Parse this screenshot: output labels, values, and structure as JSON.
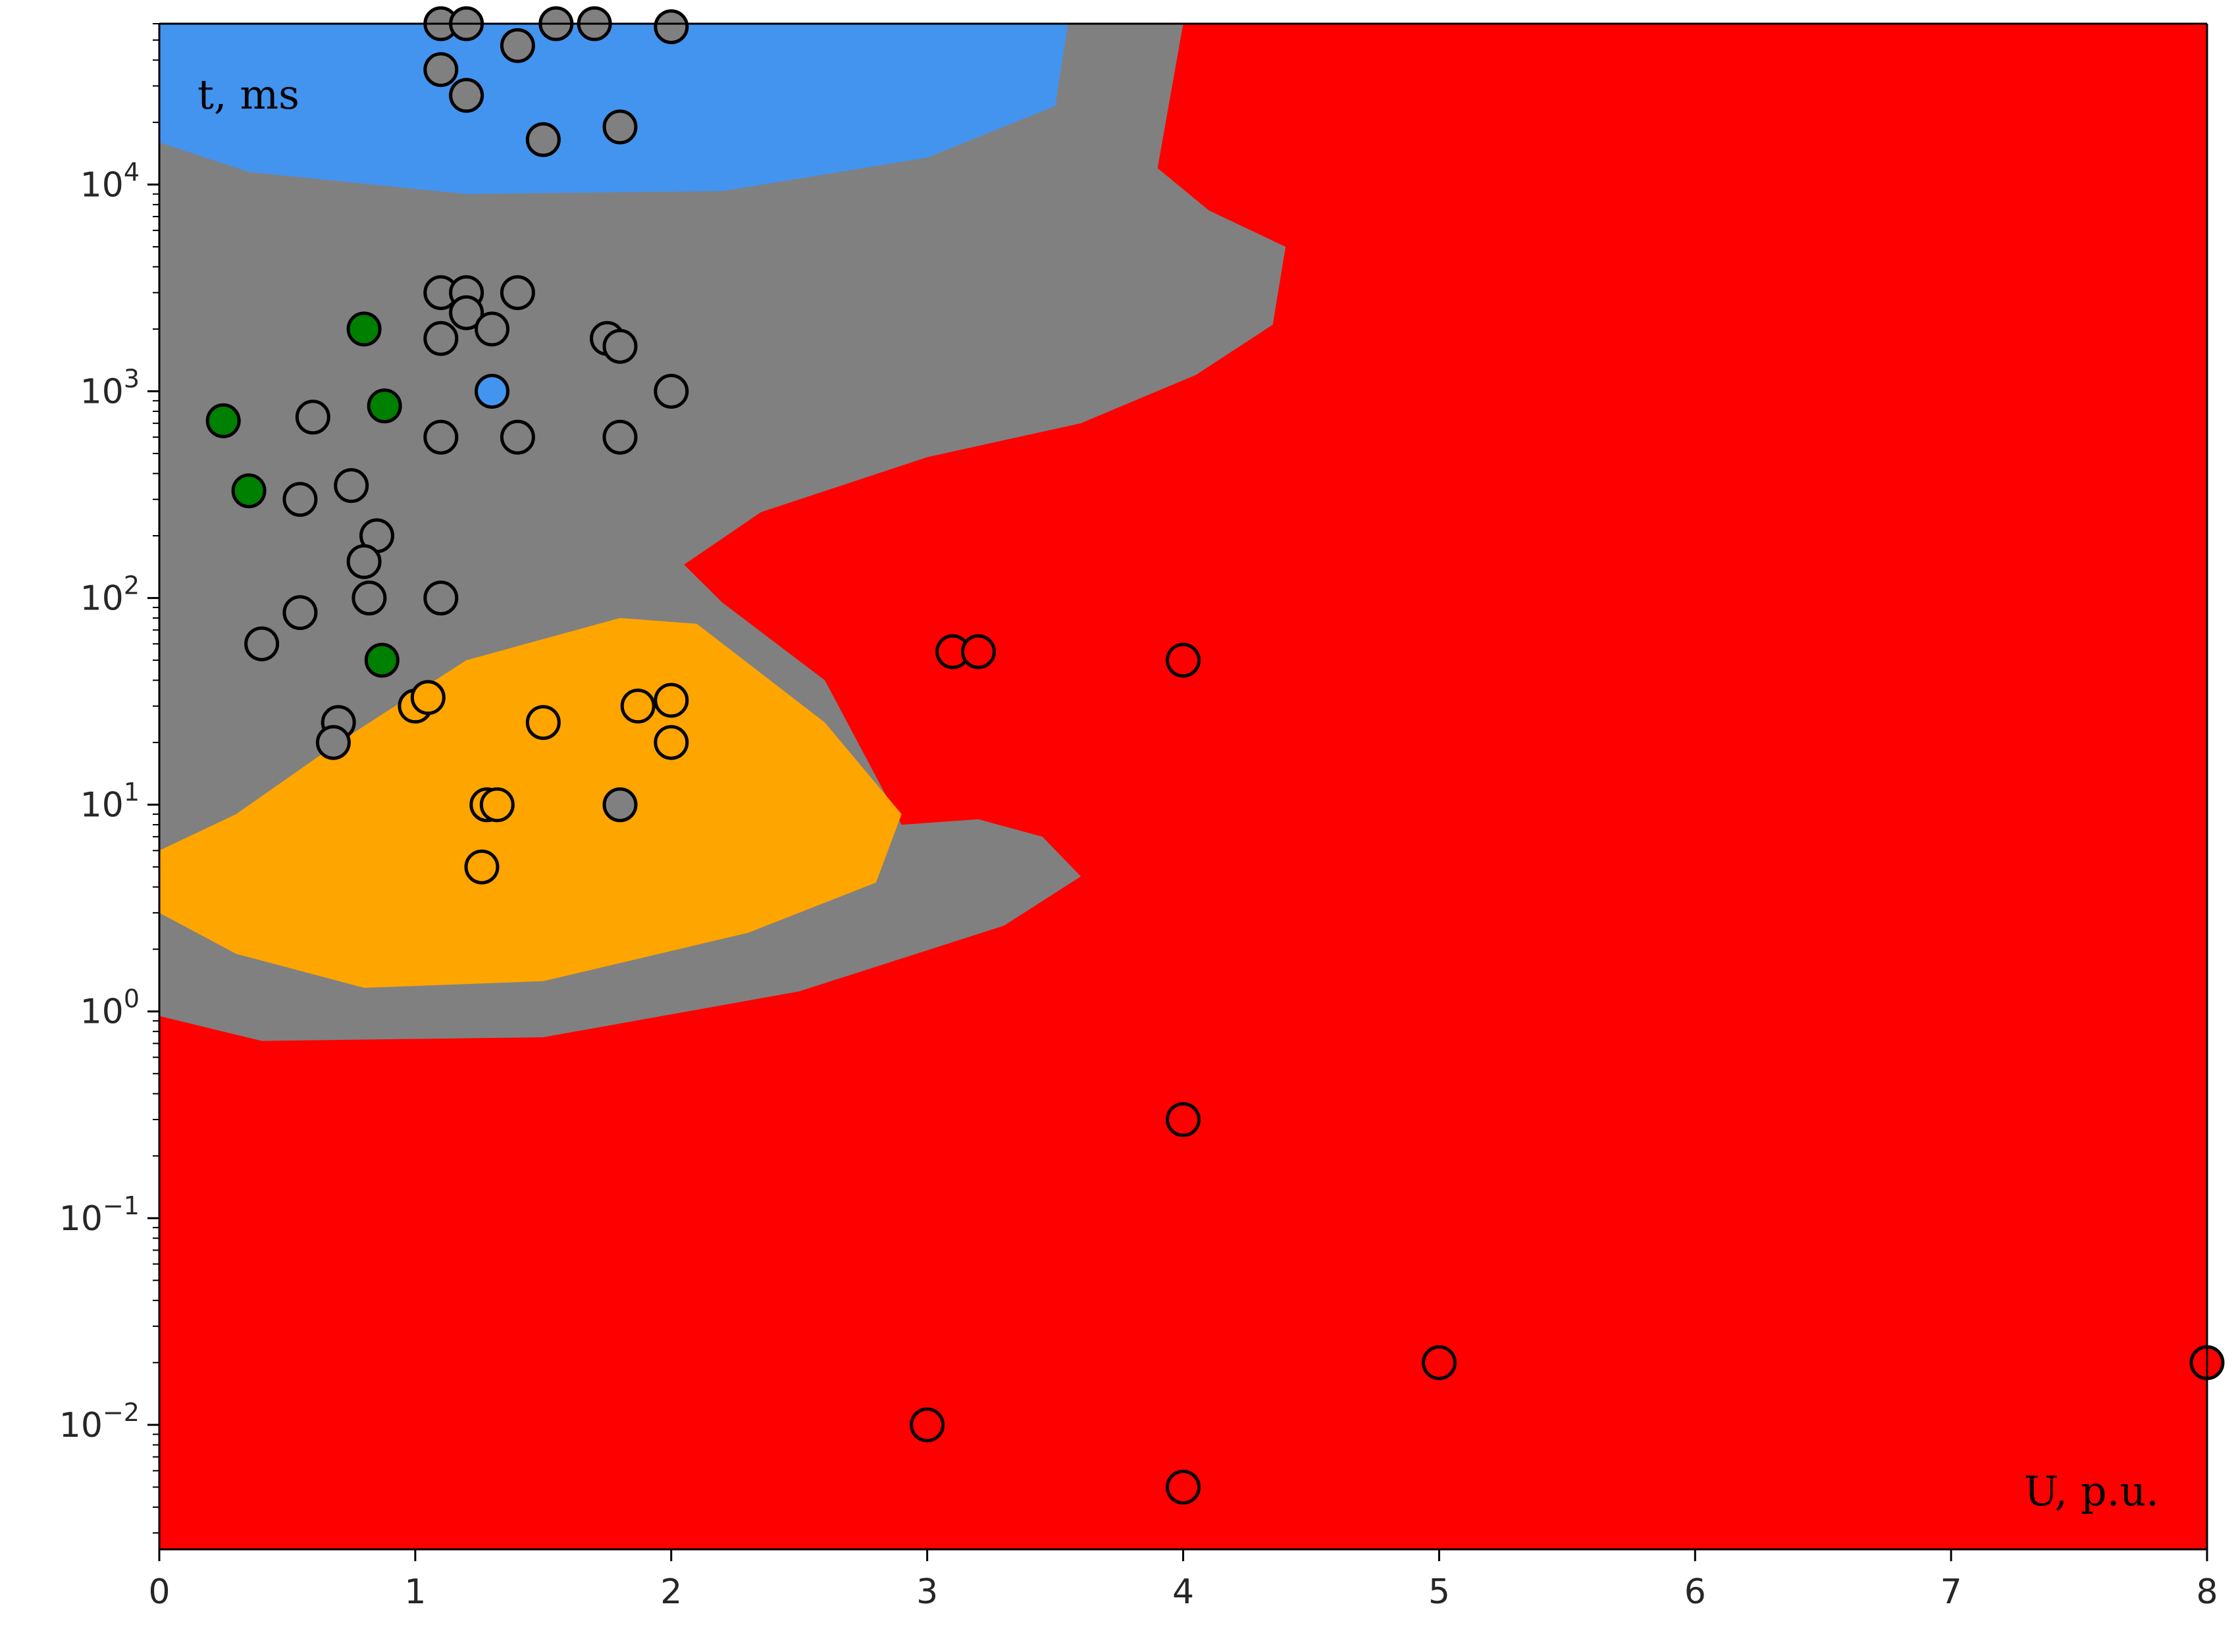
{
  "chart_data": {
    "type": "scatter",
    "xlabel": "U, p.u.",
    "ylabel": "t, ms",
    "x_scale": "linear",
    "y_scale": "log",
    "xlim": [
      0,
      8
    ],
    "ylim": [
      0.0025,
      60000
    ],
    "grid": false,
    "x_ticks": [
      {
        "value": 0,
        "label": "0"
      },
      {
        "value": 1,
        "label": "1"
      },
      {
        "value": 2,
        "label": "2"
      },
      {
        "value": 3,
        "label": "3"
      },
      {
        "value": 4,
        "label": "4"
      },
      {
        "value": 5,
        "label": "5"
      },
      {
        "value": 6,
        "label": "6"
      },
      {
        "value": 7,
        "label": "7"
      },
      {
        "value": 8,
        "label": "8"
      }
    ],
    "y_ticks": [
      {
        "value": 0.01,
        "base": "10",
        "exp": "−2"
      },
      {
        "value": 0.1,
        "base": "10",
        "exp": "−1"
      },
      {
        "value": 1,
        "base": "10",
        "exp": "0"
      },
      {
        "value": 10,
        "base": "10",
        "exp": "1"
      },
      {
        "value": 100,
        "base": "10",
        "exp": "2"
      },
      {
        "value": 1000,
        "base": "10",
        "exp": "3"
      },
      {
        "value": 10000,
        "base": "10",
        "exp": "4"
      }
    ],
    "colors": {
      "red": "#ff0000",
      "gray": "#808080",
      "blue": "#4394ef",
      "orange": "#ffa500",
      "green": "#008000",
      "marker_edge": "#000000"
    },
    "regions": [
      {
        "color": "red",
        "outline": [
          [
            0,
            0.0025
          ],
          [
            8,
            0.0025
          ],
          [
            8,
            60000
          ],
          [
            0,
            60000
          ]
        ]
      },
      {
        "color": "gray",
        "outline": [
          [
            0,
            0.95
          ],
          [
            0.4,
            0.72
          ],
          [
            1.5,
            0.75
          ],
          [
            2.5,
            1.25
          ],
          [
            3.3,
            2.6
          ],
          [
            3.6,
            4.5
          ],
          [
            3.45,
            7
          ],
          [
            3.2,
            8.5
          ],
          [
            2.9,
            8
          ],
          [
            2.6,
            40
          ],
          [
            2.2,
            95
          ],
          [
            2.05,
            145
          ],
          [
            2.35,
            260
          ],
          [
            3,
            480
          ],
          [
            3.6,
            700
          ],
          [
            4.05,
            1200
          ],
          [
            4.35,
            2100
          ],
          [
            4.4,
            5000
          ],
          [
            4.1,
            7500
          ],
          [
            3.9,
            12000
          ],
          [
            4,
            60000
          ],
          [
            0,
            60000
          ]
        ]
      },
      {
        "color": "blue",
        "outline": [
          [
            0,
            16000
          ],
          [
            0.35,
            11500
          ],
          [
            1.2,
            9000
          ],
          [
            2.2,
            9300
          ],
          [
            3,
            13500
          ],
          [
            3.5,
            24000
          ],
          [
            3.55,
            60000
          ],
          [
            0,
            60000
          ]
        ]
      },
      {
        "color": "orange",
        "outline": [
          [
            0,
            6
          ],
          [
            0.3,
            9
          ],
          [
            0.7,
            20
          ],
          [
            1.2,
            50
          ],
          [
            1.8,
            80
          ],
          [
            2.1,
            75
          ],
          [
            2.6,
            25
          ],
          [
            2.9,
            9
          ],
          [
            2.8,
            4.2
          ],
          [
            2.3,
            2.4
          ],
          [
            1.5,
            1.4
          ],
          [
            0.8,
            1.3
          ],
          [
            0.3,
            1.9
          ],
          [
            0,
            3
          ]
        ]
      }
    ],
    "series": [
      {
        "color": "gray",
        "points": [
          [
            1.1,
            60000
          ],
          [
            1.2,
            60000
          ],
          [
            1.55,
            60000
          ],
          [
            1.7,
            60000
          ],
          [
            2.0,
            58000
          ],
          [
            1.1,
            36000
          ],
          [
            1.4,
            47000
          ],
          [
            1.2,
            27000
          ],
          [
            1.5,
            16500
          ],
          [
            1.8,
            19000
          ],
          [
            1.1,
            3000
          ],
          [
            1.2,
            3000
          ],
          [
            1.4,
            3000
          ],
          [
            1.2,
            2400
          ],
          [
            1.1,
            1800
          ],
          [
            1.3,
            2000
          ],
          [
            1.75,
            1800
          ],
          [
            1.8,
            1650
          ],
          [
            2.0,
            1000
          ],
          [
            0.6,
            750
          ],
          [
            1.1,
            600
          ],
          [
            1.4,
            600
          ],
          [
            1.8,
            600
          ],
          [
            0.55,
            300
          ],
          [
            0.75,
            350
          ],
          [
            0.85,
            200
          ],
          [
            0.8,
            150
          ],
          [
            0.82,
            100
          ],
          [
            1.1,
            100
          ],
          [
            0.55,
            85
          ],
          [
            0.4,
            60
          ],
          [
            0.7,
            25
          ],
          [
            0.68,
            20
          ],
          [
            1.8,
            10
          ]
        ]
      },
      {
        "color": "green",
        "points": [
          [
            0.8,
            2000
          ],
          [
            0.88,
            850
          ],
          [
            0.25,
            720
          ],
          [
            0.35,
            330
          ],
          [
            0.87,
            50
          ]
        ]
      },
      {
        "color": "blue",
        "points": [
          [
            1.3,
            1000
          ]
        ]
      },
      {
        "color": "orange",
        "points": [
          [
            1.0,
            30
          ],
          [
            1.05,
            33
          ],
          [
            1.5,
            25
          ],
          [
            1.87,
            30
          ],
          [
            2.0,
            32
          ],
          [
            2.0,
            20
          ],
          [
            1.28,
            10
          ],
          [
            1.32,
            10
          ],
          [
            1.26,
            5
          ]
        ]
      },
      {
        "color": "red",
        "points": [
          [
            3.1,
            55
          ],
          [
            3.2,
            55
          ],
          [
            4,
            50
          ],
          [
            4,
            0.3
          ],
          [
            5,
            0.02
          ],
          [
            8,
            0.02
          ],
          [
            3,
            0.01
          ],
          [
            4,
            0.005
          ]
        ]
      }
    ]
  }
}
